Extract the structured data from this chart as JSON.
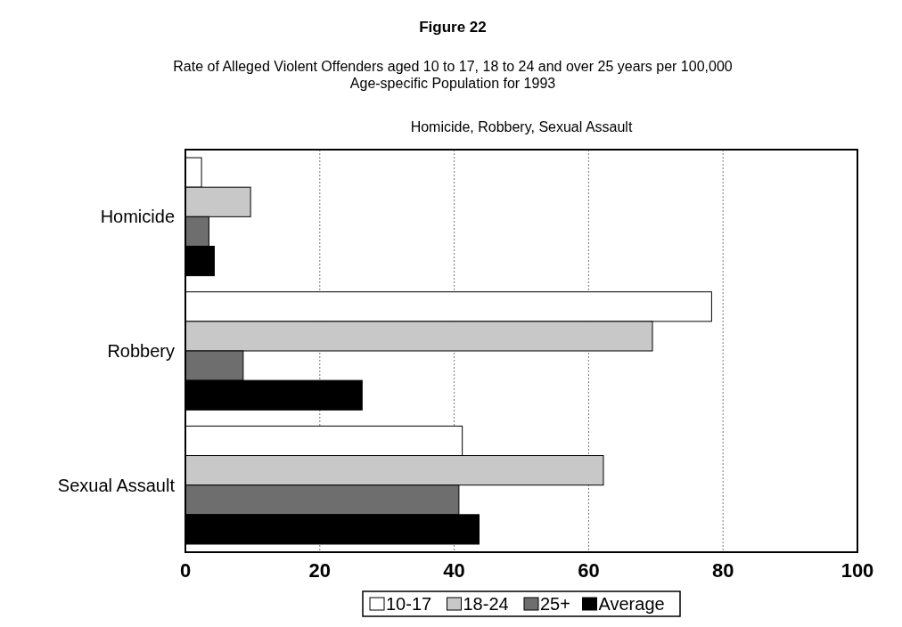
{
  "chart_data": {
    "type": "bar",
    "orientation": "horizontal",
    "title": "Figure 22",
    "subtitle": "Rate of Alleged Violent Offenders aged 10 to 17, 18 to 24 and over 25 years per 100,000 Age-specific Population for 1993",
    "annotations": [
      "Homicide, Robbery, Sexual Assault"
    ],
    "categories": [
      "Homicide",
      "Robbery",
      "Sexual Assault"
    ],
    "series": [
      {
        "name": "10-17",
        "color": "#ffffff",
        "values": [
          2.4,
          78.3,
          41.2
        ]
      },
      {
        "name": "18-24",
        "color": "#c8c8c8",
        "values": [
          9.7,
          69.5,
          62.2
        ]
      },
      {
        "name": "25+",
        "color": "#6e6e6e",
        "values": [
          3.5,
          8.6,
          40.7
        ]
      },
      {
        "name": "Average",
        "color": "#000000",
        "values": [
          4.3,
          26.3,
          43.7
        ]
      }
    ],
    "xlim": [
      0,
      100
    ],
    "xticks": [
      0,
      20,
      40,
      60,
      80,
      100
    ],
    "grid": "x",
    "legend": "bottom"
  }
}
